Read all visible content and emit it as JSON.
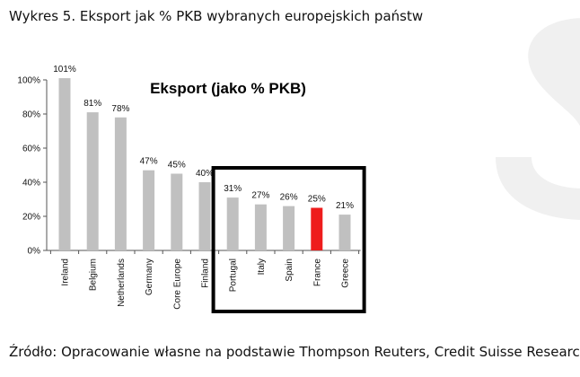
{
  "caption": "Wykres 5. Eksport jak % PKB wybranych europejskich państw",
  "source": "Źródło: Opracowanie własne na podstawie Thompson Reuters, Credit Suisse Research",
  "colors": {
    "bar": "#c0c0c0",
    "highlight_bar": "#ee1c1c",
    "box": "#000000",
    "watermark": "#f0f0f0"
  },
  "chart_data": {
    "type": "bar",
    "title": "Eksport (jako % PKB)",
    "xlabel": "",
    "ylabel": "",
    "ylim": [
      0,
      100
    ],
    "y_ticks": [
      "0%",
      "20%",
      "40%",
      "60%",
      "80%",
      "100%"
    ],
    "categories": [
      "Ireland",
      "Belgium",
      "Netherlands",
      "Germany",
      "Core Europe",
      "Finland",
      "Portugal",
      "Italy",
      "Spain",
      "France",
      "Greece"
    ],
    "values": [
      101,
      81,
      78,
      47,
      45,
      40,
      31,
      27,
      26,
      25,
      21
    ],
    "data_labels": [
      "101%",
      "81%",
      "78%",
      "47%",
      "45%",
      "40%",
      "31%",
      "27%",
      "26%",
      "25%",
      "21%"
    ],
    "highlighted_category": "France",
    "boxed_categories": [
      "Portugal",
      "Italy",
      "Spain",
      "France",
      "Greece"
    ],
    "grid": false,
    "legend": "none"
  }
}
